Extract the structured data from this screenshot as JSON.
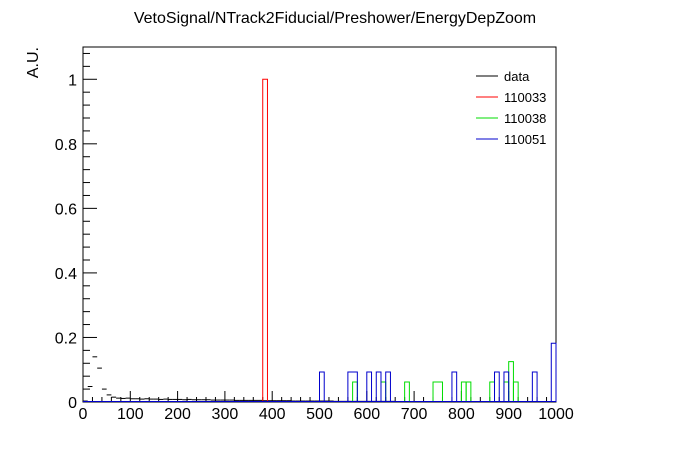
{
  "chart_data": {
    "type": "histogram",
    "title": "VetoSignal/NTrack2Fiducial/Preshower/EnergyDepZoom",
    "xlabel": "",
    "ylabel": "A.U.",
    "xlim": [
      0,
      1000
    ],
    "ylim": [
      0,
      1.1
    ],
    "bin_width": 10,
    "x_ticks": [
      0,
      100,
      200,
      300,
      400,
      500,
      600,
      700,
      800,
      900,
      1000
    ],
    "x_tick_labels": [
      "0",
      "100",
      "200",
      "300",
      "400",
      "500",
      "600",
      "700",
      "800",
      "900",
      "1000"
    ],
    "y_ticks": [
      0,
      0.2,
      0.4,
      0.6,
      0.8,
      1
    ],
    "y_tick_labels": [
      "0",
      "0.2",
      "0.4",
      "0.6",
      "0.8",
      "1"
    ],
    "legend_position": "top-right",
    "series": [
      {
        "name": "data",
        "color": "#000000",
        "style": "points",
        "points": [
          {
            "x": 5,
            "y": 0.003
          },
          {
            "x": 15,
            "y": 0.048
          },
          {
            "x": 25,
            "y": 0.14
          },
          {
            "x": 35,
            "y": 0.105
          },
          {
            "x": 45,
            "y": 0.04
          },
          {
            "x": 55,
            "y": 0.022
          },
          {
            "x": 65,
            "y": 0.015
          },
          {
            "x": 75,
            "y": 0.012
          },
          {
            "x": 85,
            "y": 0.011
          },
          {
            "x": 95,
            "y": 0.012
          },
          {
            "x": 105,
            "y": 0.01
          },
          {
            "x": 115,
            "y": 0.01
          },
          {
            "x": 125,
            "y": 0.009
          },
          {
            "x": 135,
            "y": 0.01
          },
          {
            "x": 145,
            "y": 0.009
          },
          {
            "x": 155,
            "y": 0.009
          },
          {
            "x": 165,
            "y": 0.008
          },
          {
            "x": 175,
            "y": 0.009
          },
          {
            "x": 185,
            "y": 0.008
          },
          {
            "x": 195,
            "y": 0.008
          },
          {
            "x": 205,
            "y": 0.008
          },
          {
            "x": 215,
            "y": 0.007
          },
          {
            "x": 225,
            "y": 0.008
          },
          {
            "x": 235,
            "y": 0.007
          },
          {
            "x": 245,
            "y": 0.007
          },
          {
            "x": 255,
            "y": 0.007
          },
          {
            "x": 265,
            "y": 0.007
          },
          {
            "x": 275,
            "y": 0.006
          },
          {
            "x": 285,
            "y": 0.006
          },
          {
            "x": 295,
            "y": 0.006
          },
          {
            "x": 305,
            "y": 0.006
          },
          {
            "x": 315,
            "y": 0.006
          },
          {
            "x": 325,
            "y": 0.005
          },
          {
            "x": 335,
            "y": 0.005
          },
          {
            "x": 345,
            "y": 0.005
          },
          {
            "x": 355,
            "y": 0.005
          },
          {
            "x": 365,
            "y": 0.005
          },
          {
            "x": 375,
            "y": 0.005
          },
          {
            "x": 385,
            "y": 0.004
          },
          {
            "x": 395,
            "y": 0.004
          },
          {
            "x": 405,
            "y": 0.004
          },
          {
            "x": 415,
            "y": 0.004
          },
          {
            "x": 425,
            "y": 0.004
          },
          {
            "x": 435,
            "y": 0.004
          },
          {
            "x": 445,
            "y": 0.003
          },
          {
            "x": 455,
            "y": 0.003
          },
          {
            "x": 465,
            "y": 0.003
          },
          {
            "x": 475,
            "y": 0.003
          },
          {
            "x": 485,
            "y": 0.003
          },
          {
            "x": 495,
            "y": 0.003
          },
          {
            "x": 505,
            "y": 0.003
          },
          {
            "x": 515,
            "y": 0.003
          },
          {
            "x": 525,
            "y": 0.003
          },
          {
            "x": 535,
            "y": 0.002
          },
          {
            "x": 545,
            "y": 0.002
          },
          {
            "x": 555,
            "y": 0.002
          },
          {
            "x": 565,
            "y": 0.002
          },
          {
            "x": 575,
            "y": 0.002
          },
          {
            "x": 585,
            "y": 0.002
          },
          {
            "x": 595,
            "y": 0.002
          },
          {
            "x": 605,
            "y": 0.002
          },
          {
            "x": 615,
            "y": 0.002
          },
          {
            "x": 625,
            "y": 0.002
          },
          {
            "x": 635,
            "y": 0.002
          },
          {
            "x": 645,
            "y": 0.002
          },
          {
            "x": 655,
            "y": 0.002
          },
          {
            "x": 665,
            "y": 0.001
          },
          {
            "x": 675,
            "y": 0.001
          },
          {
            "x": 685,
            "y": 0.001
          },
          {
            "x": 695,
            "y": 0.001
          },
          {
            "x": 705,
            "y": 0.001
          },
          {
            "x": 715,
            "y": 0.001
          },
          {
            "x": 725,
            "y": 0.001
          },
          {
            "x": 735,
            "y": 0.001
          },
          {
            "x": 745,
            "y": 0.001
          },
          {
            "x": 755,
            "y": 0.001
          },
          {
            "x": 765,
            "y": 0.001
          },
          {
            "x": 775,
            "y": 0.001
          },
          {
            "x": 785,
            "y": 0.001
          },
          {
            "x": 795,
            "y": 0.001
          },
          {
            "x": 805,
            "y": 0.001
          },
          {
            "x": 815,
            "y": 0.001
          },
          {
            "x": 825,
            "y": 0.001
          },
          {
            "x": 835,
            "y": 0.001
          },
          {
            "x": 845,
            "y": 0.001
          },
          {
            "x": 855,
            "y": 0.001
          },
          {
            "x": 865,
            "y": 0.001
          },
          {
            "x": 875,
            "y": 0.001
          },
          {
            "x": 885,
            "y": 0.001
          },
          {
            "x": 895,
            "y": 0.001
          },
          {
            "x": 905,
            "y": 0.001
          },
          {
            "x": 915,
            "y": 0.001
          },
          {
            "x": 925,
            "y": 0.001
          },
          {
            "x": 935,
            "y": 0.001
          },
          {
            "x": 945,
            "y": 0.001
          },
          {
            "x": 955,
            "y": 0.001
          },
          {
            "x": 965,
            "y": 0.001
          },
          {
            "x": 975,
            "y": 0.001
          },
          {
            "x": 985,
            "y": 0.001
          },
          {
            "x": 995,
            "y": 0.001
          }
        ]
      },
      {
        "name": "110033",
        "color": "#ff0000",
        "style": "step",
        "bins": [
          {
            "x0": 380,
            "x1": 390,
            "y": 1.0
          }
        ]
      },
      {
        "name": "110038",
        "color": "#00dd00",
        "style": "step",
        "bins": [
          {
            "x0": 570,
            "x1": 580,
            "y": 0.062
          },
          {
            "x0": 630,
            "x1": 640,
            "y": 0.062
          },
          {
            "x0": 680,
            "x1": 690,
            "y": 0.062
          },
          {
            "x0": 740,
            "x1": 760,
            "y": 0.062
          },
          {
            "x0": 800,
            "x1": 810,
            "y": 0.062
          },
          {
            "x0": 810,
            "x1": 820,
            "y": 0.062
          },
          {
            "x0": 860,
            "x1": 870,
            "y": 0.062
          },
          {
            "x0": 890,
            "x1": 900,
            "y": 0.062
          },
          {
            "x0": 900,
            "x1": 910,
            "y": 0.125
          },
          {
            "x0": 910,
            "x1": 920,
            "y": 0.062
          }
        ]
      },
      {
        "name": "110051",
        "color": "#0000cc",
        "style": "step",
        "bins": [
          {
            "x0": 500,
            "x1": 510,
            "y": 0.093
          },
          {
            "x0": 560,
            "x1": 580,
            "y": 0.093
          },
          {
            "x0": 600,
            "x1": 610,
            "y": 0.093
          },
          {
            "x0": 620,
            "x1": 630,
            "y": 0.093
          },
          {
            "x0": 640,
            "x1": 650,
            "y": 0.093
          },
          {
            "x0": 780,
            "x1": 790,
            "y": 0.093
          },
          {
            "x0": 870,
            "x1": 880,
            "y": 0.093
          },
          {
            "x0": 890,
            "x1": 900,
            "y": 0.093
          },
          {
            "x0": 950,
            "x1": 960,
            "y": 0.093
          },
          {
            "x0": 990,
            "x1": 1000,
            "y": 0.182
          }
        ]
      }
    ]
  }
}
